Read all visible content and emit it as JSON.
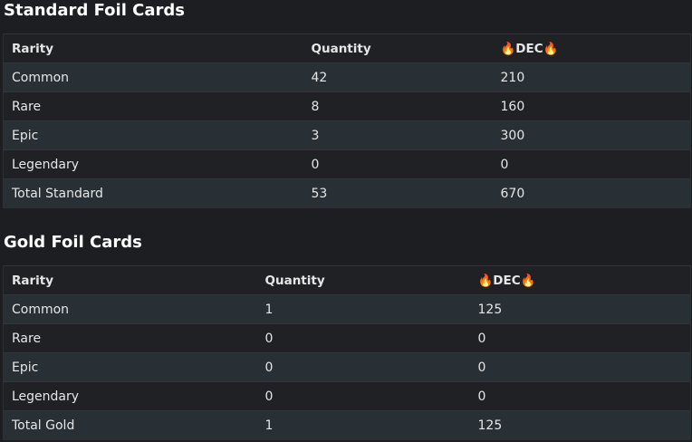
{
  "sections": [
    {
      "title": "Standard Foil Cards",
      "table": {
        "header": [
          "Rarity",
          "Quantity",
          "🔥DEC🔥"
        ],
        "rows": [
          [
            "Common",
            42,
            210
          ],
          [
            "Rare",
            8,
            160
          ],
          [
            "Epic",
            3,
            300
          ],
          [
            "Legendary",
            0,
            0
          ],
          [
            "Total Standard",
            53,
            670
          ]
        ]
      }
    },
    {
      "title": "Gold Foil Cards",
      "table": {
        "header": [
          "Rarity",
          "Quantity",
          "🔥DEC🔥"
        ],
        "rows": [
          [
            "Common",
            1,
            125
          ],
          [
            "Rare",
            0,
            0
          ],
          [
            "Epic",
            0,
            0
          ],
          [
            "Legendary",
            0,
            0
          ],
          [
            "Total Gold",
            1,
            125
          ]
        ]
      }
    }
  ]
}
